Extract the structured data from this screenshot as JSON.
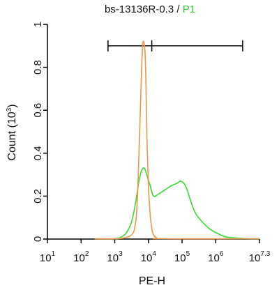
{
  "chart_data": {
    "type": "area",
    "title_prefix": "bs-13136R-0.3 / ",
    "title_gate": "P1",
    "xlabel": "PE-H",
    "ylabel": "Count (10",
    "ylabel_exp": "3",
    "ylabel_close": ")",
    "xscale": "log",
    "xlim_log10": [
      1,
      7.3
    ],
    "ylim": [
      0,
      1
    ],
    "grid": false,
    "legend": "none",
    "colors": {
      "control": "#f0964a",
      "sample": "#33dd33",
      "gate_text": "#33cc33"
    },
    "yticks": [
      {
        "value": 0,
        "label": "0"
      },
      {
        "value": 0.2,
        "label": "0.2"
      },
      {
        "value": 0.4,
        "label": "0.4"
      },
      {
        "value": 0.6,
        "label": "0.6"
      },
      {
        "value": 0.8,
        "label": "0.8"
      },
      {
        "value": 1,
        "label": "1"
      }
    ],
    "xticks": [
      {
        "log10": 1,
        "base": "10",
        "exp": "1"
      },
      {
        "log10": 2,
        "base": "10",
        "exp": "2"
      },
      {
        "log10": 3,
        "base": "10",
        "exp": "3"
      },
      {
        "log10": 4,
        "base": "10",
        "exp": "4"
      },
      {
        "log10": 5,
        "base": "10",
        "exp": "5"
      },
      {
        "log10": 6,
        "base": "10",
        "exp": "6"
      },
      {
        "log10": 7.3,
        "base": "10",
        "exp": "7.3"
      }
    ],
    "gate": {
      "left_log10": 2.8,
      "mid_log10": 4.1,
      "right_log10": 6.8,
      "y": 0.9
    },
    "series": [
      {
        "key": "control",
        "log10x": [
          2.4,
          3.1,
          3.4,
          3.55,
          3.6,
          3.65,
          3.7,
          3.75,
          3.8,
          3.83,
          3.86,
          3.9,
          3.93,
          3.96,
          4.0,
          4.05,
          4.1,
          4.15,
          4.25,
          4.4,
          7.3
        ],
        "y": [
          0,
          0,
          0.01,
          0.03,
          0.06,
          0.12,
          0.3,
          0.55,
          0.8,
          0.9,
          0.92,
          0.87,
          0.7,
          0.45,
          0.25,
          0.12,
          0.05,
          0.02,
          0.005,
          0,
          0
        ]
      },
      {
        "key": "sample",
        "log10x": [
          2.4,
          3.0,
          3.2,
          3.35,
          3.5,
          3.62,
          3.72,
          3.8,
          3.88,
          3.95,
          4.05,
          4.15,
          4.3,
          4.5,
          4.7,
          4.85,
          4.95,
          5.05,
          5.15,
          5.25,
          5.4,
          5.6,
          5.8,
          6.0,
          6.3,
          6.6,
          7.0,
          7.3
        ],
        "y": [
          0,
          0,
          0.01,
          0.03,
          0.08,
          0.17,
          0.27,
          0.32,
          0.33,
          0.3,
          0.25,
          0.2,
          0.21,
          0.23,
          0.25,
          0.26,
          0.27,
          0.26,
          0.23,
          0.18,
          0.12,
          0.08,
          0.05,
          0.03,
          0.01,
          0.005,
          0,
          0
        ]
      }
    ]
  }
}
